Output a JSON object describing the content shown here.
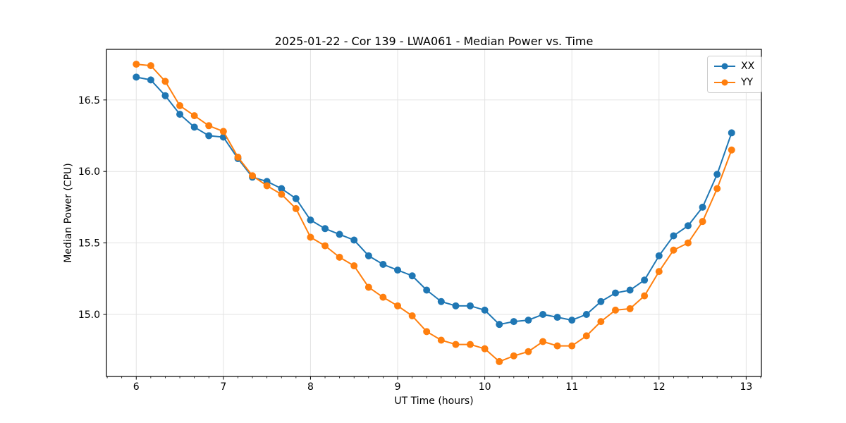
{
  "chart_data": {
    "type": "line",
    "title": "2025-01-22 - Cor 139 - LWA061 - Median Power vs. Time",
    "xlabel": "UT Time (hours)",
    "ylabel": "Median Power (CPU)",
    "xlim": [
      5.658,
      13.175
    ],
    "ylim": [
      14.566,
      16.854
    ],
    "grid": true,
    "legend_position": "upper right",
    "x_ticks": [
      6,
      7,
      8,
      9,
      10,
      11,
      12,
      13
    ],
    "x_tick_labels": [
      "6",
      "7",
      "8",
      "9",
      "10",
      "11",
      "12",
      "13"
    ],
    "x_minor_tick_step": 0.1666667,
    "y_ticks": [
      15.0,
      15.5,
      16.0,
      16.5
    ],
    "y_tick_labels": [
      "15.0",
      "15.5",
      "16.0",
      "16.5"
    ],
    "x": [
      6.0,
      6.167,
      6.333,
      6.5,
      6.667,
      6.833,
      7.0,
      7.167,
      7.333,
      7.5,
      7.667,
      7.833,
      8.0,
      8.167,
      8.333,
      8.5,
      8.667,
      8.833,
      9.0,
      9.167,
      9.333,
      9.5,
      9.667,
      9.833,
      10.0,
      10.167,
      10.333,
      10.5,
      10.667,
      10.833,
      11.0,
      11.167,
      11.333,
      11.5,
      11.667,
      11.833,
      12.0,
      12.167,
      12.333,
      12.5,
      12.667,
      12.833
    ],
    "series": [
      {
        "name": "XX",
        "color": "#1f77b4",
        "values": [
          16.66,
          16.64,
          16.53,
          16.4,
          16.31,
          16.25,
          16.24,
          16.09,
          15.96,
          15.93,
          15.88,
          15.81,
          15.66,
          15.6,
          15.56,
          15.52,
          15.41,
          15.35,
          15.31,
          15.27,
          15.17,
          15.09,
          15.06,
          15.06,
          15.03,
          14.93,
          14.95,
          14.96,
          15.0,
          14.98,
          14.96,
          15.0,
          15.09,
          15.15,
          15.17,
          15.24,
          15.41,
          15.55,
          15.62,
          15.75,
          15.98,
          16.27
        ]
      },
      {
        "name": "YY",
        "color": "#ff7f0e",
        "values": [
          16.75,
          16.74,
          16.63,
          16.46,
          16.39,
          16.32,
          16.28,
          16.1,
          15.97,
          15.9,
          15.84,
          15.74,
          15.54,
          15.48,
          15.4,
          15.34,
          15.19,
          15.12,
          15.06,
          14.99,
          14.88,
          14.82,
          14.79,
          14.79,
          14.76,
          14.67,
          14.71,
          14.74,
          14.81,
          14.78,
          14.78,
          14.85,
          14.95,
          15.03,
          15.04,
          15.13,
          15.3,
          15.45,
          15.5,
          15.65,
          15.88,
          16.15
        ]
      }
    ],
    "style": {
      "grid_color": "#e3e3e3",
      "spine_color": "#000000",
      "tick_color": "#000000",
      "background": "#ffffff"
    }
  }
}
